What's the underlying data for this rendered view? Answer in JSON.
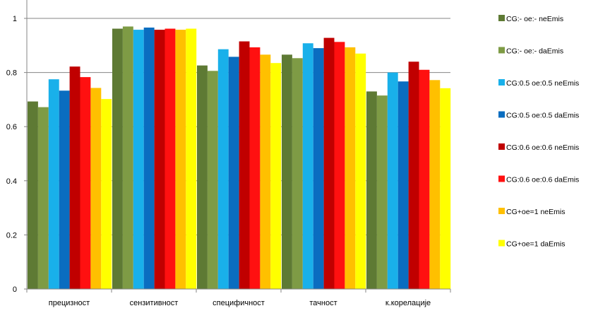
{
  "chart_data": {
    "type": "bar",
    "title": "",
    "xlabel": "",
    "ylabel": "",
    "ylim": [
      0,
      1.05
    ],
    "yticks": [
      "0",
      "0.2",
      "0.4",
      "0.6",
      "0.8",
      "1"
    ],
    "grid": true,
    "legend_position": "right",
    "categories": [
      "прецизност",
      "сензитивност",
      "специфичност",
      "тачност",
      "к.корелације"
    ],
    "series": [
      {
        "name": "CG:- oe:- neEmis",
        "color": "#5E7A34",
        "values": [
          0.693,
          0.962,
          0.826,
          0.866,
          0.73
        ]
      },
      {
        "name": "CG:- oe:- daEmis",
        "color": "#7E9B45",
        "values": [
          0.672,
          0.97,
          0.806,
          0.853,
          0.715
        ]
      },
      {
        "name": "CG:0.5 oe:0.5 neEmis",
        "color": "#19B0EA",
        "values": [
          0.775,
          0.958,
          0.886,
          0.908,
          0.8
        ]
      },
      {
        "name": "CG:0.5 oe:0.5 daEmis",
        "color": "#0A6DC0",
        "values": [
          0.733,
          0.966,
          0.858,
          0.89,
          0.767
        ]
      },
      {
        "name": "CG:0.6 oe:0.6 neEmis",
        "color": "#C00000",
        "values": [
          0.822,
          0.958,
          0.915,
          0.928,
          0.84
        ]
      },
      {
        "name": "CG:0.6 oe:0.6 daEmis",
        "color": "#FF1010",
        "values": [
          0.783,
          0.962,
          0.893,
          0.913,
          0.81
        ]
      },
      {
        "name": "CG+oe=1 neEmis",
        "color": "#FFC000",
        "values": [
          0.743,
          0.958,
          0.866,
          0.893,
          0.772
        ]
      },
      {
        "name": "CG+oe=1 daEmis",
        "color": "#FFFF00",
        "values": [
          0.702,
          0.962,
          0.835,
          0.87,
          0.742
        ]
      }
    ]
  }
}
